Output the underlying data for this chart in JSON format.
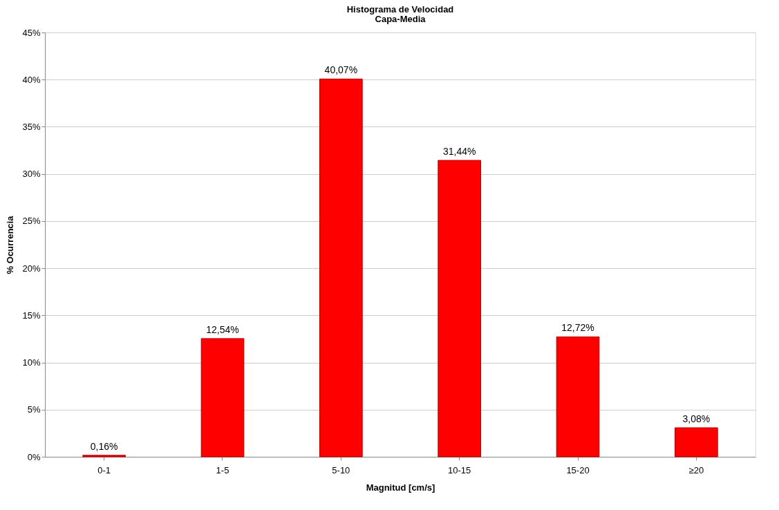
{
  "chart_data": {
    "type": "bar",
    "title": "Histograma de Velocidad",
    "subtitle": "Capa-Media",
    "xlabel": "Magnitud [cm/s]",
    "ylabel": "% Ocurrencia",
    "categories": [
      "0-1",
      "1-5",
      "5-10",
      "10-15",
      "15-20",
      "≥20"
    ],
    "values": [
      0.16,
      12.54,
      40.07,
      31.44,
      12.72,
      3.08
    ],
    "value_labels": [
      "0,16%",
      "12,54%",
      "40,07%",
      "31,44%",
      "12,72%",
      "3,08%"
    ],
    "color": "#ff0000",
    "ylim": [
      0,
      45
    ],
    "yticks": [
      {
        "value": 0,
        "label": "0%"
      },
      {
        "value": 5,
        "label": "5%"
      },
      {
        "value": 10,
        "label": "10%"
      },
      {
        "value": 15,
        "label": "15%"
      },
      {
        "value": 20,
        "label": "20%"
      },
      {
        "value": 25,
        "label": "25%"
      },
      {
        "value": 30,
        "label": "30%"
      },
      {
        "value": 35,
        "label": "35%"
      },
      {
        "value": 40,
        "label": "40%"
      },
      {
        "value": 45,
        "label": "45%"
      }
    ],
    "grid": "y"
  }
}
